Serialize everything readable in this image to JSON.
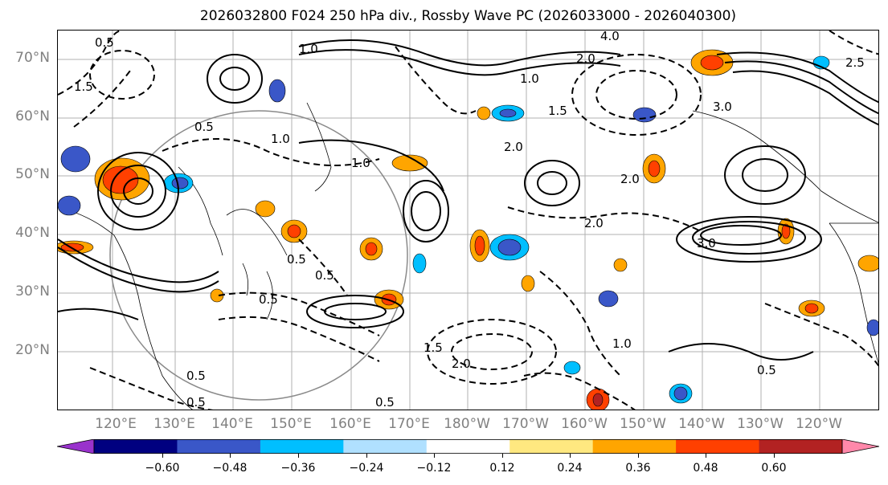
{
  "title": "2026032800 F024 250 hPa div., Rossby Wave PC (2026033000 - 2026040300)",
  "latitude_labels": [
    "70°N",
    "60°N",
    "50°N",
    "40°N",
    "30°N",
    "20°N"
  ],
  "longitude_labels": [
    "120°E",
    "130°E",
    "140°E",
    "150°E",
    "160°E",
    "170°E",
    "180°W",
    "170°W",
    "160°W",
    "150°W",
    "140°W",
    "130°W",
    "120°W"
  ],
  "colorbar": {
    "tick_labels": [
      "−0.60",
      "−0.48",
      "−0.36",
      "−0.24",
      "−0.12",
      "0.12",
      "0.24",
      "0.36",
      "0.48",
      "0.60"
    ],
    "levels": [
      -0.6,
      -0.48,
      -0.36,
      -0.24,
      -0.12,
      0.12,
      0.24,
      0.36,
      0.48,
      0.6
    ],
    "colors": [
      "#9932cc",
      "#000080",
      "#3a57c8",
      "#00bfff",
      "#b0e0ff",
      "#ffffff",
      "#ffe880",
      "#ffa500",
      "#ff4000",
      "#b22222",
      "#ff88aa"
    ],
    "extend": "both"
  },
  "contour_labels": [
    "0.5",
    "1.0",
    "1.5",
    "2.0",
    "2.5",
    "3.0",
    "4.0",
    "0.5",
    "1.0",
    "1.0",
    "1.0",
    "1.5",
    "2.0",
    "2.0",
    "2.0",
    "3.0",
    "0.5",
    "0.5",
    "0.5",
    "0.5",
    "0.5",
    "1.0",
    "1.5",
    "2.0",
    "0.5",
    "0.5"
  ],
  "contour_style": {
    "positive": "solid black",
    "negative": "dashed black"
  }
}
